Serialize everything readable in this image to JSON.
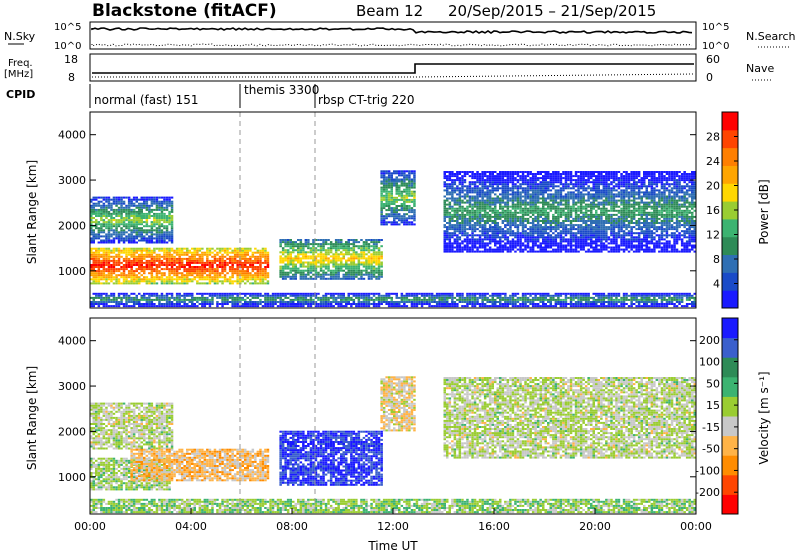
{
  "header": {
    "station": "Blackstone (fitACF)",
    "beam": "Beam 12",
    "date_range": "20/Sep/2015 – 21/Sep/2015"
  },
  "summary_panel": {
    "left_nsky_label": "N.Sky",
    "left_nsky_ticks": [
      "10^5",
      "10^0"
    ],
    "right_nsearch_label": "N.Search",
    "right_nsearch_ticks": [
      "10^5",
      "10^0"
    ],
    "freq_label": "Freq.",
    "freq_unit": "[MHz]",
    "freq_ticks": [
      "18",
      "8"
    ],
    "nave_label": "Nave",
    "nave_ticks": [
      "60",
      "0"
    ],
    "cpid_label": "CPID"
  },
  "cpid_segments": [
    {
      "label": "normal (fast) 151",
      "start_hour": 0
    },
    {
      "label": "themis 3300",
      "start_hour": 6
    },
    {
      "label": "rbsp CT-trig 220",
      "start_hour": 9
    }
  ],
  "colors": {
    "power": [
      "#1a1aff",
      "#1a4bc8",
      "#2f6fb3",
      "#2e8b57",
      "#3cb371",
      "#9acd32",
      "#ffd700",
      "#ffa500",
      "#ff7f00",
      "#ff4500",
      "#ff0000"
    ],
    "velocity": [
      "#ff0000",
      "#ff4500",
      "#ff8c00",
      "#ffb347",
      "#c8c8c8",
      "#9acd32",
      "#3cb371",
      "#2e8b57",
      "#3a5fcd",
      "#1a1aff"
    ]
  },
  "chart_data": [
    {
      "type": "heatmap",
      "name": "power",
      "xlabel": "",
      "ylabel": "Slant Range [km]",
      "xlim": [
        0,
        24
      ],
      "ylim": [
        180,
        4500
      ],
      "yticks": [
        1000,
        2000,
        3000,
        4000
      ],
      "colorbar": {
        "label": "Power [dB]",
        "ticks": [
          4,
          8,
          12,
          16,
          20,
          24,
          28
        ],
        "range": [
          0,
          32
        ]
      },
      "regions": [
        {
          "t0": 0,
          "t1": 7,
          "r0": 700,
          "r1": 1500,
          "value": 24
        },
        {
          "t0": 0,
          "t1": 3.3,
          "r0": 1600,
          "r1": 2600,
          "value": 10
        },
        {
          "t0": 7.5,
          "t1": 11.5,
          "r0": 800,
          "r1": 1700,
          "value": 14
        },
        {
          "t0": 11.5,
          "t1": 12.8,
          "r0": 2000,
          "r1": 3200,
          "value": 10
        },
        {
          "t0": 14,
          "t1": 24,
          "r0": 1400,
          "r1": 3200,
          "value": 6
        },
        {
          "t0": 0,
          "t1": 24,
          "r0": 200,
          "r1": 500,
          "value": 6
        }
      ]
    },
    {
      "type": "heatmap",
      "name": "velocity",
      "xlabel": "Time UT",
      "ylabel": "Slant Range [km]",
      "xlim": [
        0,
        24
      ],
      "ylim": [
        180,
        4500
      ],
      "yticks": [
        1000,
        2000,
        3000,
        4000
      ],
      "xticks": [
        "00:00",
        "04:00",
        "08:00",
        "12:00",
        "16:00",
        "20:00",
        "00:00"
      ],
      "colorbar": {
        "label": "Velocity [m s⁻¹]",
        "ticks": [
          -200,
          -100,
          -50,
          -15,
          15,
          50,
          100,
          200
        ],
        "range": [
          -250,
          250
        ]
      },
      "regions": [
        {
          "t0": 0,
          "t1": 3.3,
          "r0": 1600,
          "r1": 2600,
          "value": 0
        },
        {
          "t0": 0,
          "t1": 3.2,
          "r0": 700,
          "r1": 1400,
          "value": 20
        },
        {
          "t0": 1.6,
          "t1": 7,
          "r0": 900,
          "r1": 1600,
          "value": -70
        },
        {
          "t0": 7.5,
          "t1": 11.5,
          "r0": 800,
          "r1": 2000,
          "value": 210
        },
        {
          "t0": 11.5,
          "t1": 12.8,
          "r0": 2000,
          "r1": 3200,
          "value": -40
        },
        {
          "t0": 14,
          "t1": 24,
          "r0": 1400,
          "r1": 3200,
          "value": 0
        },
        {
          "t0": 0,
          "t1": 24,
          "r0": 200,
          "r1": 500,
          "value": 30
        }
      ]
    }
  ]
}
